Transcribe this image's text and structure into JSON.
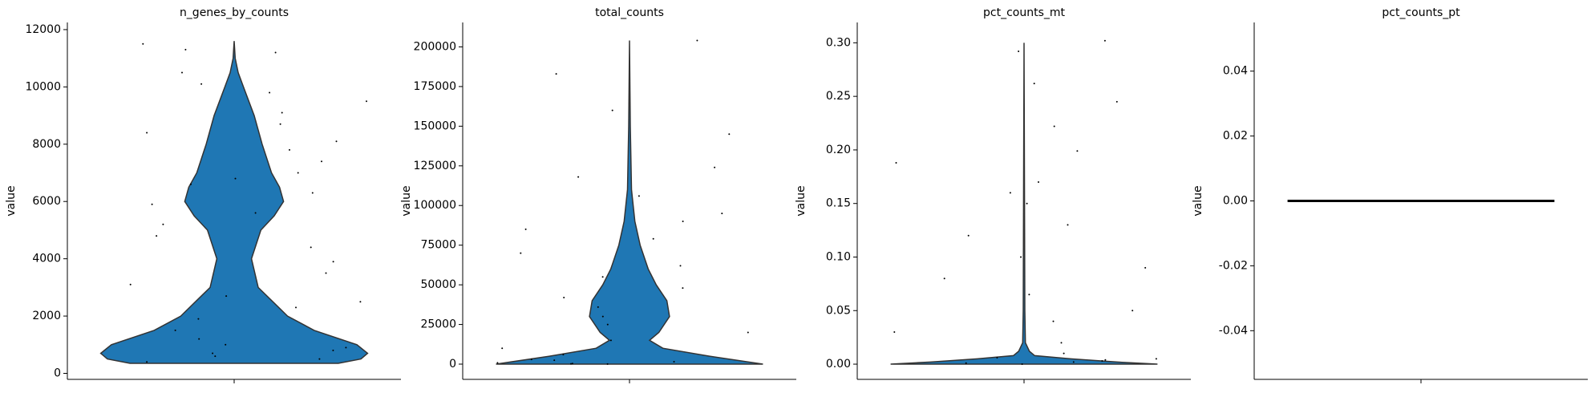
{
  "chart_data": [
    {
      "type": "violin",
      "title": "n_genes_by_counts",
      "ylabel": "value",
      "color": "#1f77b4",
      "ylim": [
        -210,
        12250
      ],
      "yticks": [
        0,
        2000,
        4000,
        6000,
        8000,
        10000,
        12000
      ],
      "profile": {
        "y": [
          350,
          500,
          700,
          1000,
          1500,
          2000,
          3000,
          4000,
          5000,
          5500,
          6000,
          6500,
          7000,
          8000,
          9000,
          10000,
          10500,
          11000,
          11600
        ],
        "width": [
          0.78,
          0.95,
          1.0,
          0.92,
          0.6,
          0.4,
          0.18,
          0.13,
          0.2,
          0.3,
          0.37,
          0.34,
          0.28,
          0.21,
          0.15,
          0.07,
          0.03,
          0.008,
          0
        ]
      },
      "points": [
        11200,
        10500,
        9800,
        9500,
        9100,
        8700,
        8400,
        8100,
        7800,
        7400,
        7000,
        6600,
        6300,
        5900,
        5600,
        5200,
        4800,
        4400,
        3900,
        3500,
        3100,
        2700,
        2300,
        1900,
        1500,
        1200,
        900,
        800,
        700,
        600,
        500,
        400,
        11500,
        11300,
        10100,
        6800,
        2500,
        1000
      ]
    },
    {
      "type": "violin",
      "title": "total_counts",
      "ylabel": "value",
      "color": "#1f77b4",
      "ylim": [
        -9600,
        215400
      ],
      "yticks": [
        0,
        25000,
        50000,
        75000,
        100000,
        125000,
        150000,
        175000,
        200000
      ],
      "profile": {
        "y": [
          0,
          5000,
          10000,
          15000,
          20000,
          30000,
          40000,
          50000,
          60000,
          75000,
          90000,
          110000,
          150000,
          204000
        ],
        "width": [
          1.0,
          0.6,
          0.25,
          0.15,
          0.22,
          0.3,
          0.28,
          0.2,
          0.14,
          0.08,
          0.04,
          0.015,
          0.006,
          0
        ]
      },
      "points": [
        204000,
        183000,
        160000,
        145000,
        124000,
        118000,
        106000,
        95000,
        90000,
        85000,
        79000,
        70000,
        62000,
        55000,
        48000,
        42000,
        36000,
        30000,
        25000,
        20000,
        15000,
        10000,
        6000,
        3000,
        1500,
        800,
        400,
        200,
        100,
        2500
      ]
    },
    {
      "type": "violin",
      "title": "pct_counts_mt",
      "ylabel": "value",
      "color": "#1f77b4",
      "ylim": [
        -0.0142,
        0.319
      ],
      "yticks": [
        {
          "value": 0,
          "label": "0.00"
        },
        0.05,
        {
          "value": 0.1,
          "label": "0.10"
        },
        0.15,
        {
          "value": 0.2,
          "label": "0.20"
        },
        0.25,
        {
          "value": 0.3,
          "label": "0.30"
        }
      ],
      "profile": {
        "y": [
          0,
          0.002,
          0.005,
          0.008,
          0.012,
          0.02,
          0.05,
          0.3
        ],
        "width": [
          1.0,
          0.7,
          0.35,
          0.08,
          0.04,
          0.01,
          0.006,
          0
        ]
      },
      "points": [
        0.302,
        0.292,
        0.262,
        0.245,
        0.222,
        0.199,
        0.188,
        0.17,
        0.16,
        0.15,
        0.13,
        0.12,
        0.1,
        0.09,
        0.08,
        0.065,
        0.05,
        0.04,
        0.03,
        0.02,
        0.01,
        0.006,
        0.004,
        0.002,
        0.001,
        0.003,
        0.005,
        0
      ]
    },
    {
      "type": "violin",
      "title": "pct_counts_pt",
      "ylabel": "value",
      "color": "#1f77b4",
      "ylim": [
        -0.055,
        0.055
      ],
      "yticks": [
        -0.04,
        -0.02,
        {
          "value": 0,
          "label": "0.00"
        },
        0.02,
        0.04
      ],
      "profile": {
        "y": [
          0
        ],
        "width": [
          1
        ]
      }
    }
  ]
}
